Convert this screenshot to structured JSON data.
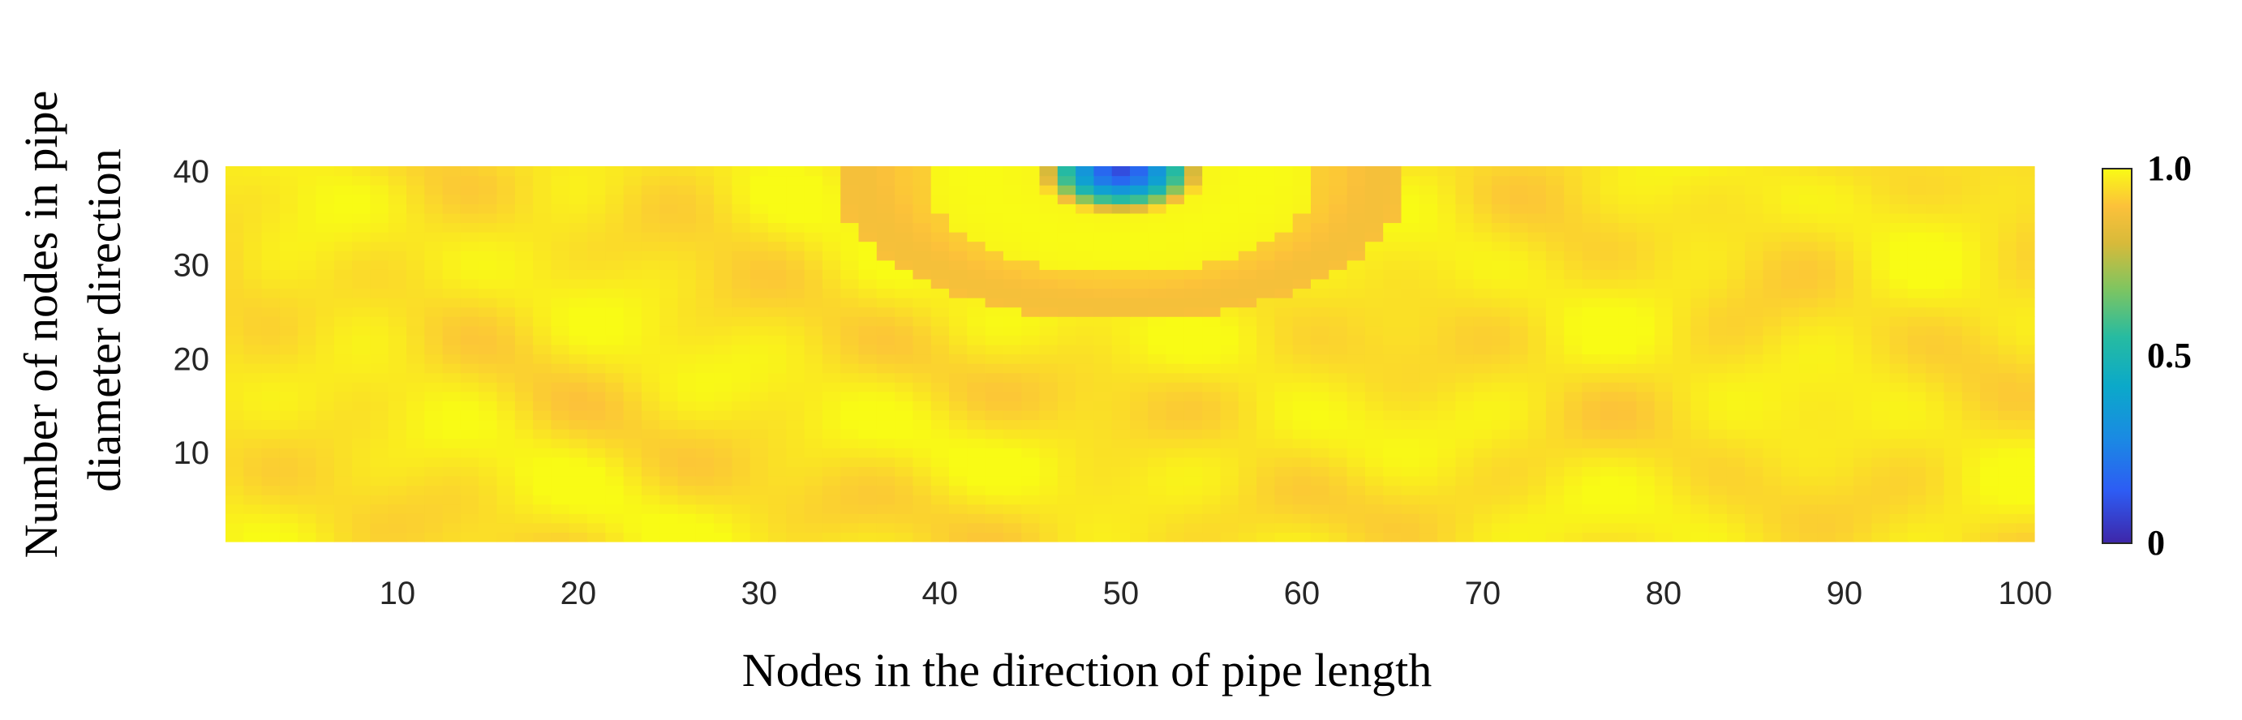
{
  "chart_data": {
    "type": "heatmap",
    "xlabel": "Nodes in the direction of pipe length",
    "ylabel_lines": [
      "Number of nodes in pipe",
      "diameter direction"
    ],
    "x_range": [
      1,
      100
    ],
    "y_range": [
      1,
      40
    ],
    "x_ticks": [
      10,
      20,
      30,
      40,
      50,
      60,
      70,
      80,
      90,
      100
    ],
    "y_ticks": [
      10,
      20,
      30,
      40
    ],
    "colorbar": {
      "min": 0,
      "max": 1.0,
      "ticks": [
        "0",
        "0.5",
        "1.0"
      ],
      "colormap": "parula"
    },
    "field": {
      "baseline": 0.96,
      "defect_center_x": 50,
      "defect_center_y": 40,
      "defect_min_value": 0.1,
      "description_values": [
        {
          "x": 50,
          "y": 39,
          "value": 0.25
        },
        {
          "x": 50,
          "y": 36,
          "value": 0.65
        },
        {
          "x": 50,
          "y": 32,
          "value": 1.0
        },
        {
          "x": 50,
          "y": 25,
          "value": 0.93
        },
        {
          "x": 10,
          "y": 20,
          "value": 0.97
        }
      ]
    }
  }
}
